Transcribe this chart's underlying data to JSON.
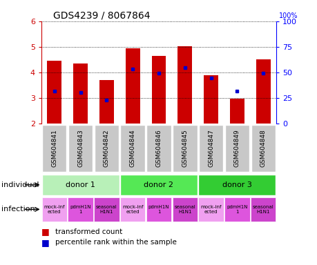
{
  "title": "GDS4239 / 8067864",
  "samples": [
    "GSM604841",
    "GSM604843",
    "GSM604842",
    "GSM604844",
    "GSM604846",
    "GSM604845",
    "GSM604847",
    "GSM604849",
    "GSM604848"
  ],
  "bar_values": [
    4.45,
    4.33,
    3.7,
    4.93,
    4.63,
    5.03,
    3.87,
    2.97,
    4.5
  ],
  "bar_bottom": 2.0,
  "blue_values": [
    3.25,
    3.2,
    2.9,
    4.13,
    3.97,
    4.17,
    3.77,
    3.25,
    3.97
  ],
  "ylim": [
    2.0,
    6.0
  ],
  "yticks_left": [
    2,
    3,
    4,
    5,
    6
  ],
  "yticks_right": [
    0,
    25,
    50,
    75,
    100
  ],
  "bar_color": "#cc0000",
  "blue_color": "#0000cc",
  "donors": [
    {
      "label": "donor 1",
      "start": 0,
      "end": 3,
      "color": "#b8f0b8"
    },
    {
      "label": "donor 2",
      "start": 3,
      "end": 6,
      "color": "#55e855"
    },
    {
      "label": "donor 3",
      "start": 6,
      "end": 9,
      "color": "#33cc33"
    }
  ],
  "infection_labels": [
    "mock-inf\nected",
    "pdmH1N\n1",
    "seasonal\nH1N1",
    "mock-inf\nected",
    "pdmH1N\n1",
    "seasonal\nH1N1",
    "mock-inf\nected",
    "pdmH1N\n1",
    "seasonal\nH1N1"
  ],
  "infection_colors": [
    "#f0a0f0",
    "#dd55dd",
    "#cc44cc",
    "#f0a0f0",
    "#dd55dd",
    "#cc44cc",
    "#f0a0f0",
    "#dd55dd",
    "#cc44cc"
  ],
  "individual_label": "individual",
  "infection_label": "infection",
  "legend_bar": "transformed count",
  "legend_blue": "percentile rank within the sample",
  "bg_color": "#ffffff",
  "tick_color_left": "#cc0000",
  "tick_color_right": "#0000ff",
  "grid_color": "#000000",
  "sample_bg_color": "#c8c8c8"
}
